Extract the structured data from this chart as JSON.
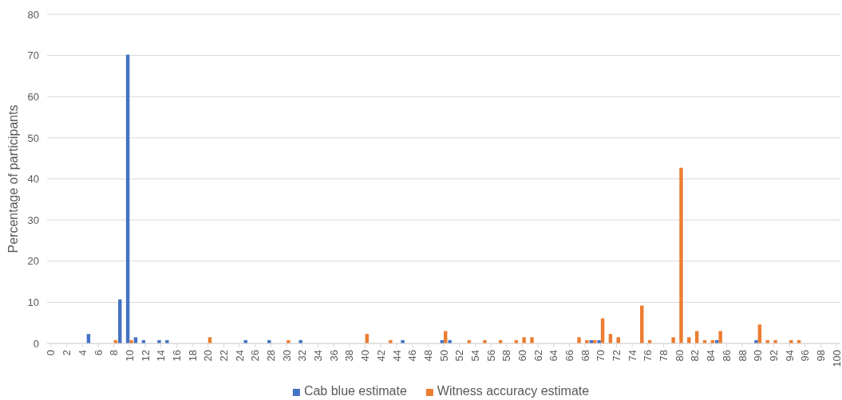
{
  "chart_data": {
    "type": "bar",
    "ylabel": "Percentage of participants",
    "categories": [
      "0",
      null,
      "2",
      null,
      "4",
      null,
      "6",
      null,
      "8",
      null,
      "10",
      null,
      "12",
      null,
      "14",
      null,
      "16",
      null,
      "18",
      null,
      "20",
      null,
      "22",
      null,
      "24",
      null,
      "26",
      null,
      "28",
      null,
      "30",
      null,
      "32",
      null,
      "34",
      null,
      "36",
      null,
      "38",
      null,
      "40",
      null,
      "42",
      null,
      "44",
      null,
      "46",
      null,
      "48",
      null,
      "50",
      null,
      "52",
      null,
      "54",
      null,
      "56",
      null,
      "58",
      null,
      "60",
      null,
      "62",
      null,
      "64",
      null,
      "66",
      null,
      "68",
      null,
      "70",
      null,
      "72",
      null,
      "74",
      null,
      "76",
      null,
      "78",
      null,
      "80",
      null,
      "82",
      null,
      "84",
      null,
      "86",
      null,
      "88",
      null,
      "90",
      null,
      "92",
      null,
      "94",
      null,
      "96",
      null,
      "98",
      null,
      "100"
    ],
    "series": [
      {
        "name": "Cab blue estimate",
        "color": "#4472c4",
        "values": [
          0,
          0,
          0,
          0,
          0,
          2.3,
          0,
          0,
          0,
          10.7,
          70.2,
          1.5,
          0.8,
          0,
          0.8,
          0.8,
          0,
          0,
          0,
          0,
          0,
          0,
          0,
          0,
          0,
          0.8,
          0,
          0,
          0.8,
          0,
          0,
          0,
          0.8,
          0,
          0,
          0,
          0,
          0,
          0,
          0,
          0,
          0,
          0,
          0,
          0,
          0.8,
          0,
          0,
          0,
          0,
          0.8,
          0.8,
          0,
          0,
          0,
          0,
          0,
          0,
          0,
          0,
          0,
          0,
          0,
          0,
          0,
          0,
          0,
          0,
          0,
          0.8,
          0.8,
          0,
          0,
          0,
          0,
          0,
          0,
          0,
          0,
          0,
          0,
          0,
          0,
          0,
          0,
          0.8,
          0,
          0,
          0,
          0,
          0.8,
          0,
          0,
          0,
          0,
          0,
          0,
          0,
          0,
          0,
          0
        ]
      },
      {
        "name": "Witness accuracy estimate",
        "color": "#ed7d31",
        "values": [
          0,
          0,
          0,
          0,
          0,
          0,
          0,
          0,
          0.8,
          0,
          0.8,
          0,
          0,
          0,
          0,
          0,
          0,
          0,
          0,
          0,
          1.5,
          0,
          0,
          0,
          0,
          0,
          0,
          0,
          0,
          0,
          0.8,
          0,
          0,
          0,
          0,
          0,
          0,
          0,
          0,
          0,
          2.3,
          0,
          0,
          0.8,
          0,
          0,
          0,
          0,
          0,
          0,
          3.0,
          0,
          0,
          0.8,
          0,
          0.8,
          0,
          0.8,
          0,
          0.8,
          1.5,
          1.5,
          0,
          0,
          0,
          0,
          0,
          1.5,
          0.8,
          0.8,
          6.1,
          2.3,
          1.5,
          0,
          0,
          9.2,
          0.8,
          0,
          0,
          1.5,
          42.7,
          1.5,
          3.0,
          0.8,
          0.8,
          3.0,
          0,
          0,
          0,
          0,
          4.6,
          0.8,
          0.8,
          0,
          0.8,
          0.8,
          0,
          0,
          0,
          0,
          0
        ]
      }
    ],
    "ylim": [
      0,
      80
    ],
    "yticks": [
      0,
      10,
      20,
      30,
      40,
      50,
      60,
      70,
      80
    ],
    "grid": "y",
    "legend": "bottom"
  }
}
